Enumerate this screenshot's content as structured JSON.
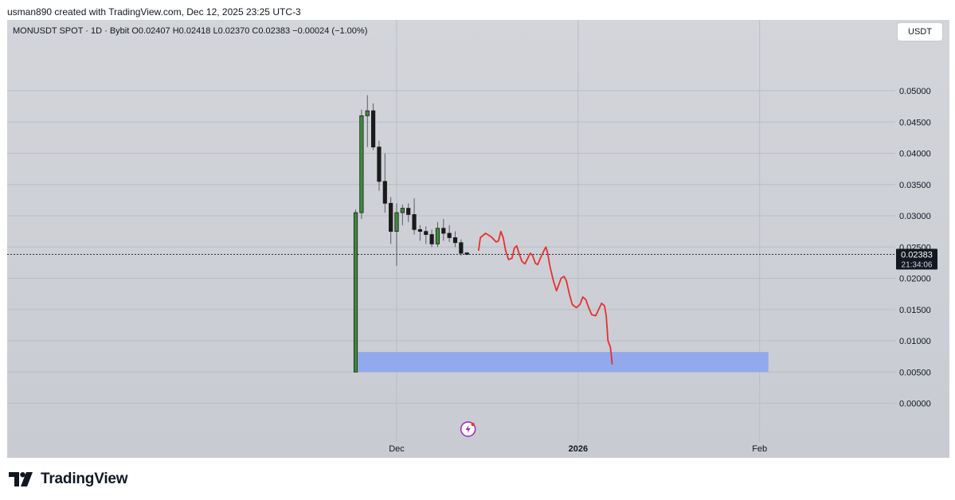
{
  "caption": "usman890 created with TradingView.com, Dec 12, 2025 23:25 UTC-3",
  "header": {
    "symbol_line": "MONUSDT SPOT · 1D · Bybit  O0.02407  H0.02418  L0.02370  C0.02383  −0.00024 (−1.00%)",
    "currency_button": "USDT"
  },
  "brand": {
    "name": "TradingView"
  },
  "colors": {
    "up": "#3d8a3a",
    "down": "#1b1b1b",
    "drawing": "#e8302c",
    "zone": "#8ea6ee",
    "grid": "#babdc5",
    "price_label_bg": "#131722"
  },
  "chart_data": {
    "type": "candlestick",
    "symbol": "MONUSDT",
    "interval": "1D",
    "exchange": "Bybit",
    "y_axis": {
      "ticks": [
        "0.05000",
        "0.04500",
        "0.04000",
        "0.03500",
        "0.03000",
        "0.02500",
        "0.02000",
        "0.01500",
        "0.01000",
        "0.00500",
        "0.00000"
      ],
      "ylim": [
        -0.0035,
        0.0565
      ],
      "scale": "linear"
    },
    "x_axis": {
      "ticks": [
        {
          "label": "Dec",
          "day": 0,
          "bold": false
        },
        {
          "label": "2026",
          "day": 31,
          "bold": true
        },
        {
          "label": "Feb",
          "day": 62,
          "bold": false
        }
      ]
    },
    "last_price": {
      "value": "0.02383",
      "countdown": "21:34:06",
      "price": 0.02383
    },
    "candles": [
      {
        "day": -7,
        "o": 0.005,
        "h": 0.031,
        "l": 0.005,
        "c": 0.0305
      },
      {
        "day": -6,
        "o": 0.0305,
        "h": 0.047,
        "l": 0.0295,
        "c": 0.046
      },
      {
        "day": -5,
        "o": 0.046,
        "h": 0.0493,
        "l": 0.041,
        "c": 0.0468
      },
      {
        "day": -4,
        "o": 0.0468,
        "h": 0.048,
        "l": 0.0405,
        "c": 0.041
      },
      {
        "day": -3,
        "o": 0.041,
        "h": 0.042,
        "l": 0.034,
        "c": 0.0355
      },
      {
        "day": -2,
        "o": 0.0355,
        "h": 0.04,
        "l": 0.0305,
        "c": 0.032
      },
      {
        "day": -1,
        "o": 0.032,
        "h": 0.033,
        "l": 0.0255,
        "c": 0.0275
      },
      {
        "day": 0,
        "o": 0.0275,
        "h": 0.032,
        "l": 0.022,
        "c": 0.0305
      },
      {
        "day": 1,
        "o": 0.0305,
        "h": 0.0318,
        "l": 0.0285,
        "c": 0.0312
      },
      {
        "day": 2,
        "o": 0.0312,
        "h": 0.032,
        "l": 0.029,
        "c": 0.0302
      },
      {
        "day": 3,
        "o": 0.0302,
        "h": 0.0328,
        "l": 0.027,
        "c": 0.0278
      },
      {
        "day": 4,
        "o": 0.0278,
        "h": 0.0285,
        "l": 0.026,
        "c": 0.0275
      },
      {
        "day": 5,
        "o": 0.0275,
        "h": 0.0283,
        "l": 0.0255,
        "c": 0.027
      },
      {
        "day": 6,
        "o": 0.027,
        "h": 0.0278,
        "l": 0.025,
        "c": 0.0255
      },
      {
        "day": 7,
        "o": 0.0255,
        "h": 0.029,
        "l": 0.025,
        "c": 0.028
      },
      {
        "day": 8,
        "o": 0.028,
        "h": 0.0295,
        "l": 0.026,
        "c": 0.0272
      },
      {
        "day": 9,
        "o": 0.0272,
        "h": 0.0285,
        "l": 0.0258,
        "c": 0.0265
      },
      {
        "day": 10,
        "o": 0.0265,
        "h": 0.0275,
        "l": 0.025,
        "c": 0.0257
      },
      {
        "day": 11,
        "o": 0.0257,
        "h": 0.0262,
        "l": 0.0236,
        "c": 0.024
      },
      {
        "day": 12,
        "o": 0.02407,
        "h": 0.02418,
        "l": 0.0237,
        "c": 0.02383
      }
    ],
    "drawings": {
      "forecast_path": [
        [
          14.0,
          0.0245
        ],
        [
          14.3,
          0.0265
        ],
        [
          15.2,
          0.0272
        ],
        [
          16.2,
          0.0266
        ],
        [
          17.0,
          0.0258
        ],
        [
          17.4,
          0.026
        ],
        [
          17.8,
          0.0275
        ],
        [
          18.2,
          0.0265
        ],
        [
          18.6,
          0.0245
        ],
        [
          19.1,
          0.023
        ],
        [
          19.7,
          0.0232
        ],
        [
          20.1,
          0.0248
        ],
        [
          20.5,
          0.0252
        ],
        [
          20.9,
          0.024
        ],
        [
          21.4,
          0.0227
        ],
        [
          21.9,
          0.0223
        ],
        [
          22.4,
          0.0232
        ],
        [
          22.8,
          0.024
        ],
        [
          23.2,
          0.0237
        ],
        [
          23.7,
          0.0224
        ],
        [
          24.1,
          0.0222
        ],
        [
          24.6,
          0.0233
        ],
        [
          25.2,
          0.0245
        ],
        [
          25.5,
          0.025
        ],
        [
          25.8,
          0.024
        ],
        [
          26.2,
          0.0218
        ],
        [
          26.8,
          0.0195
        ],
        [
          27.3,
          0.018
        ],
        [
          27.7,
          0.019
        ],
        [
          28.1,
          0.02
        ],
        [
          28.6,
          0.0203
        ],
        [
          29.0,
          0.0196
        ],
        [
          29.5,
          0.0175
        ],
        [
          30.0,
          0.0158
        ],
        [
          30.7,
          0.0153
        ],
        [
          31.3,
          0.0158
        ],
        [
          31.8,
          0.017
        ],
        [
          32.3,
          0.0166
        ],
        [
          32.8,
          0.0153
        ],
        [
          33.3,
          0.0142
        ],
        [
          34.0,
          0.014
        ],
        [
          34.5,
          0.015
        ],
        [
          35.0,
          0.016
        ],
        [
          35.5,
          0.0156
        ],
        [
          35.8,
          0.014
        ],
        [
          36.1,
          0.01
        ],
        [
          36.5,
          0.009
        ],
        [
          36.7,
          0.0075
        ],
        [
          36.8,
          0.0063
        ]
      ],
      "zone": {
        "x_start_day": -6.6,
        "x_end_day": 63.5,
        "y_low": 0.005,
        "y_high": 0.0082
      }
    }
  }
}
